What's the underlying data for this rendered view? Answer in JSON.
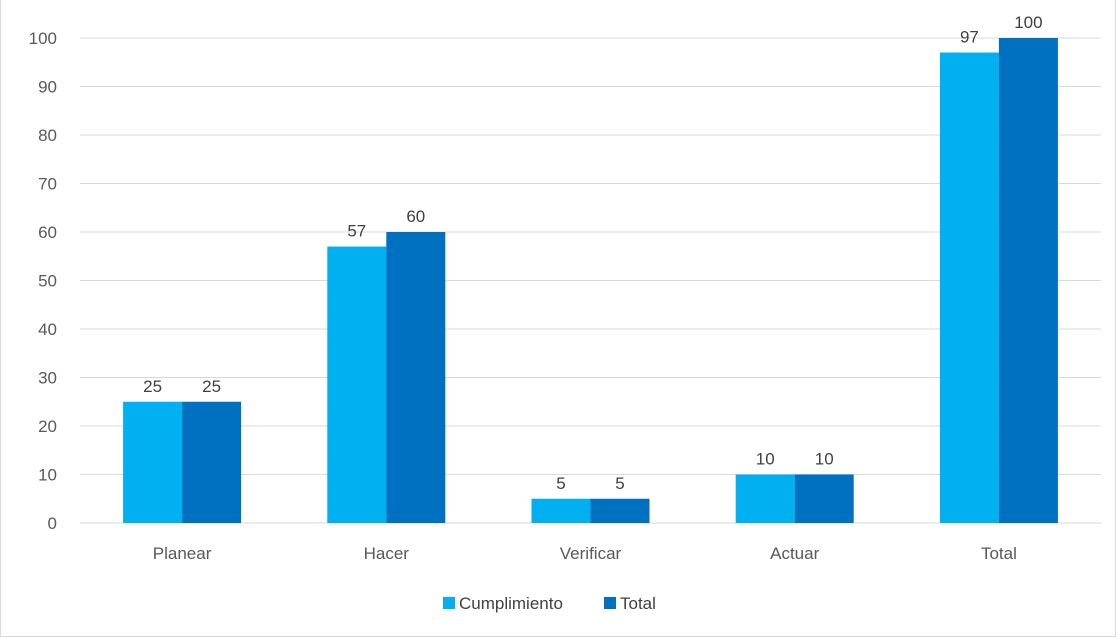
{
  "chart_data": {
    "type": "bar",
    "title": "",
    "categories": [
      "Planear",
      "Hacer",
      "Verificar",
      "Actuar",
      "Total"
    ],
    "series": [
      {
        "name": "Cumplimiento",
        "values": [
          25,
          57,
          5,
          10,
          97
        ],
        "color": "#00b0f0"
      },
      {
        "name": "Total",
        "values": [
          25,
          60,
          5,
          10,
          100
        ],
        "color": "#0070c0"
      }
    ],
    "ylim": [
      0,
      100
    ],
    "yticks": [
      0,
      10,
      20,
      30,
      40,
      50,
      60,
      70,
      80,
      90,
      100
    ],
    "grid": true,
    "legend": "bottom",
    "xlabel": "",
    "ylabel": ""
  }
}
